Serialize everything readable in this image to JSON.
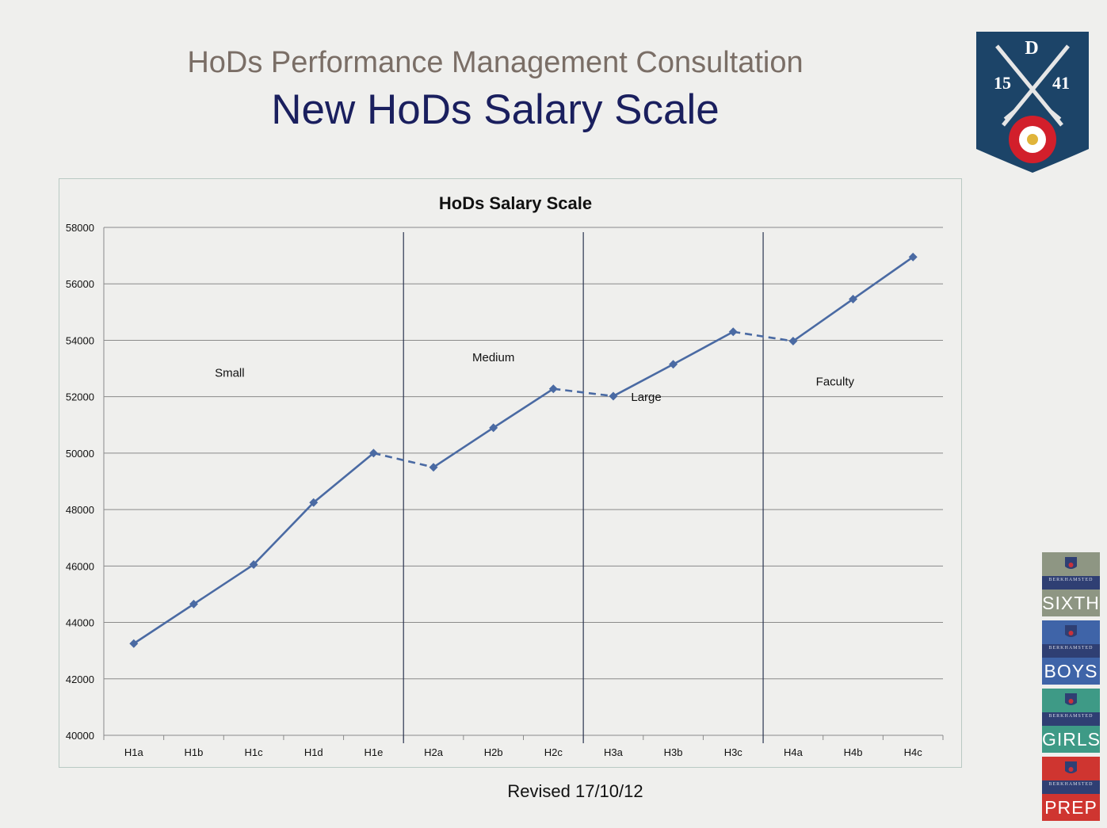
{
  "slide": {
    "heading": "HoDs Performance Management Consultation",
    "title": "New HoDs Salary Scale",
    "revised": "Revised 17/10/12"
  },
  "crest": {
    "letter": "D",
    "year_left": "15",
    "year_right": "41",
    "color": "#1c4468"
  },
  "school_logos": [
    {
      "school": "BERKHAMSTED",
      "name": "SIXTH",
      "color": "#8e9683"
    },
    {
      "school": "BERKHAMSTED",
      "name": "BOYS",
      "color": "#3f64a8"
    },
    {
      "school": "BERKHAMSTED",
      "name": "GIRLS",
      "color": "#3e9a86"
    },
    {
      "school": "BERKHAMSTED",
      "name": "PREP",
      "color": "#cf3530"
    }
  ],
  "chart_data": {
    "type": "line",
    "title": "HoDs Salary Scale",
    "xlabel": "",
    "ylabel": "",
    "categories": [
      "H1a",
      "H1b",
      "H1c",
      "H1d",
      "H1e",
      "H2a",
      "H2b",
      "H2c",
      "H3a",
      "H3b",
      "H3c",
      "H4a",
      "H4b",
      "H4c"
    ],
    "values": [
      43250,
      44650,
      46050,
      48250,
      50000,
      49500,
      50900,
      52280,
      52020,
      53150,
      54300,
      53970,
      55460,
      56950
    ],
    "segments": [
      {
        "from": 0,
        "to": 4,
        "style": "solid"
      },
      {
        "from": 4,
        "to": 5,
        "style": "dashed"
      },
      {
        "from": 5,
        "to": 7,
        "style": "solid"
      },
      {
        "from": 7,
        "to": 8,
        "style": "dashed"
      },
      {
        "from": 8,
        "to": 10,
        "style": "solid"
      },
      {
        "from": 10,
        "to": 11,
        "style": "dashed"
      },
      {
        "from": 11,
        "to": 13,
        "style": "solid"
      }
    ],
    "yticks": [
      "40000",
      "42000",
      "44000",
      "46000",
      "48000",
      "50000",
      "52000",
      "54000",
      "56000",
      "58000"
    ],
    "ylim": [
      40000,
      58000
    ],
    "grid": true,
    "group_dividers": [
      4.5,
      7.5,
      10.5
    ],
    "annotations": [
      {
        "text": "Small",
        "x": 1.6,
        "y": 52700
      },
      {
        "text": "Medium",
        "x": 6.0,
        "y": 53250
      },
      {
        "text": "Large",
        "x": 8.55,
        "y": 51850
      },
      {
        "text": "Faculty",
        "x": 11.7,
        "y": 52400
      }
    ],
    "line_color": "#4a6aa3"
  }
}
